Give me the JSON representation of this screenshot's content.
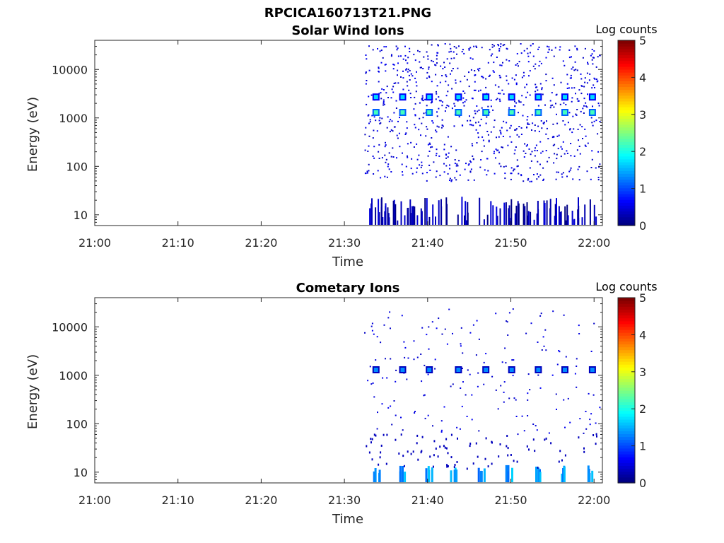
{
  "figure_title": "RPCICA160713T21.PNG",
  "chart_data": [
    {
      "type": "heatmap",
      "title": "Solar Wind Ions",
      "xlabel": "Time",
      "ylabel": "Energy (eV)",
      "y_scale": "log",
      "x_ticks": [
        "21:00",
        "21:10",
        "21:20",
        "21:30",
        "21:40",
        "21:50",
        "22:00"
      ],
      "y_ticks": [
        "10",
        "100",
        "1000",
        "10000"
      ],
      "xlim_minutes": [
        0,
        61
      ],
      "ylim": [
        6,
        40000
      ],
      "colorbar": {
        "label": "Log counts",
        "ticks": [
          "0",
          "1",
          "2",
          "3",
          "4",
          "5"
        ],
        "range": [
          0,
          5
        ],
        "colormap": "jet"
      },
      "data_start_minute": 32.3,
      "features": [
        {
          "type": "sweep_peak",
          "energy": 1300,
          "log_counts": 2.2,
          "minutes": [
            33.8,
            37,
            40.2,
            43.7,
            47,
            50.1,
            53.3,
            56.5,
            59.8
          ]
        },
        {
          "type": "sweep_peak",
          "energy": 2700,
          "log_counts": 1.7,
          "minutes": [
            33.8,
            37,
            40.2,
            43.7,
            47,
            50.1,
            53.3,
            56.5,
            59.8
          ]
        },
        {
          "type": "low_energy_band",
          "energy": [
            6,
            20
          ],
          "log_counts": 0.5
        },
        {
          "type": "background_noise",
          "energy": [
            50,
            35000
          ],
          "log_counts": 0.3
        }
      ]
    },
    {
      "type": "heatmap",
      "title": "Cometary Ions",
      "xlabel": "Time",
      "ylabel": "Energy (eV)",
      "y_scale": "log",
      "x_ticks": [
        "21:00",
        "21:10",
        "21:20",
        "21:30",
        "21:40",
        "21:50",
        "22:00"
      ],
      "y_ticks": [
        "10",
        "100",
        "1000",
        "10000"
      ],
      "xlim_minutes": [
        0,
        61
      ],
      "ylim": [
        6,
        40000
      ],
      "colorbar": {
        "label": "Log counts",
        "ticks": [
          "0",
          "1",
          "2",
          "3",
          "4",
          "5"
        ],
        "range": [
          0,
          5
        ],
        "colormap": "jet"
      },
      "data_start_minute": 32.3,
      "features": [
        {
          "type": "sweep_peak",
          "energy": 1300,
          "log_counts": 1.3,
          "minutes": [
            33.8,
            37,
            40.2,
            43.7,
            47,
            50.1,
            53.3,
            56.5,
            59.8
          ]
        },
        {
          "type": "low_energy_band",
          "energy": [
            6,
            14
          ],
          "log_counts": 1.5,
          "minutes": [
            33.8,
            37,
            40.2,
            43.2,
            46.5,
            49.8,
            53.1,
            56.3,
            59.6
          ]
        },
        {
          "type": "background_noise",
          "energy": [
            60,
            25000
          ],
          "log_counts": 0.3
        }
      ]
    }
  ]
}
